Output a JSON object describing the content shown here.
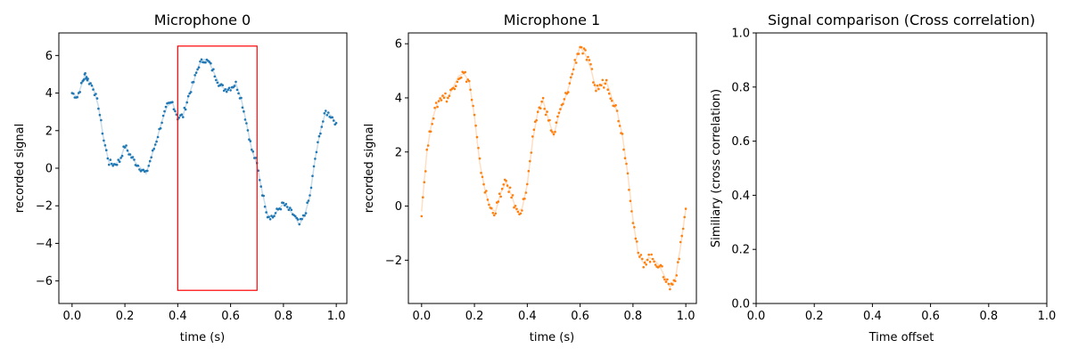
{
  "chart_data": [
    {
      "type": "scatter",
      "title": "Microphone 0",
      "xlabel": "time (s)",
      "ylabel": "recorded signal",
      "xlim": [
        -0.05,
        1.04
      ],
      "ylim": [
        -7.2,
        7.2
      ],
      "xticks": [
        0.0,
        0.2,
        0.4,
        0.6,
        0.8,
        1.0
      ],
      "xtick_labels": [
        "0.0",
        "0.2",
        "0.4",
        "0.6",
        "0.8",
        "1.0"
      ],
      "yticks": [
        -6,
        -4,
        -2,
        0,
        2,
        4,
        6
      ],
      "ytick_labels": [
        "−6",
        "−4",
        "−2",
        "0",
        "2",
        "4",
        "6"
      ],
      "grid": false,
      "color": "#1f77b4",
      "selection_box": {
        "x0": 0.4,
        "x1": 0.7,
        "y0": -6.5,
        "y1": 6.5,
        "color": "#ff0000"
      },
      "series": [
        {
          "x": [
            0.0,
            0.02,
            0.04,
            0.05,
            0.06,
            0.08,
            0.1,
            0.12,
            0.14,
            0.16,
            0.18,
            0.2,
            0.22,
            0.24,
            0.26,
            0.28,
            0.3,
            0.32,
            0.34,
            0.36,
            0.38,
            0.4,
            0.42,
            0.44,
            0.46,
            0.48,
            0.5,
            0.52,
            0.54,
            0.56,
            0.58,
            0.6,
            0.62,
            0.64,
            0.66,
            0.68,
            0.7,
            0.72,
            0.74,
            0.76,
            0.78,
            0.8,
            0.82,
            0.84,
            0.86,
            0.88,
            0.9,
            0.92,
            0.94,
            0.96,
            0.98,
            1.0
          ],
          "y": [
            4.0,
            3.8,
            4.6,
            5.0,
            4.7,
            4.3,
            3.3,
            1.5,
            0.3,
            0.2,
            0.4,
            1.2,
            0.7,
            0.3,
            0.0,
            -0.3,
            0.6,
            1.5,
            2.5,
            3.3,
            3.5,
            2.7,
            2.8,
            3.8,
            4.6,
            5.5,
            5.8,
            5.6,
            5.0,
            4.4,
            4.2,
            4.3,
            4.5,
            3.7,
            2.4,
            1.0,
            0.2,
            -1.3,
            -2.5,
            -2.6,
            -2.2,
            -1.9,
            -2.2,
            -2.5,
            -3.0,
            -2.5,
            -1.5,
            0.5,
            2.0,
            3.0,
            2.8,
            2.4
          ]
        }
      ]
    },
    {
      "type": "scatter",
      "title": "Microphone 1",
      "xlabel": "time (s)",
      "ylabel": "recorded signal",
      "xlim": [
        -0.05,
        1.04
      ],
      "ylim": [
        -3.6,
        6.4
      ],
      "xticks": [
        0.0,
        0.2,
        0.4,
        0.6,
        0.8,
        1.0
      ],
      "xtick_labels": [
        "0.0",
        "0.2",
        "0.4",
        "0.6",
        "0.8",
        "1.0"
      ],
      "yticks": [
        -2,
        0,
        2,
        4,
        6
      ],
      "ytick_labels": [
        "−2",
        "0",
        "2",
        "4",
        "6"
      ],
      "grid": false,
      "color": "#ff7f0e",
      "series": [
        {
          "x": [
            0.0,
            0.02,
            0.04,
            0.06,
            0.08,
            0.1,
            0.12,
            0.14,
            0.16,
            0.18,
            0.2,
            0.22,
            0.24,
            0.26,
            0.28,
            0.3,
            0.32,
            0.34,
            0.36,
            0.38,
            0.4,
            0.42,
            0.44,
            0.46,
            0.48,
            0.5,
            0.52,
            0.54,
            0.56,
            0.58,
            0.6,
            0.62,
            0.64,
            0.66,
            0.68,
            0.7,
            0.72,
            0.74,
            0.76,
            0.78,
            0.8,
            0.82,
            0.84,
            0.86,
            0.88,
            0.9,
            0.92,
            0.94,
            0.96,
            0.98,
            1.0
          ],
          "y": [
            -0.2,
            2.0,
            3.2,
            3.8,
            4.1,
            4.0,
            4.4,
            4.8,
            4.9,
            4.6,
            3.3,
            1.6,
            0.6,
            -0.1,
            -0.2,
            0.5,
            0.9,
            0.4,
            -0.2,
            -0.1,
            0.8,
            2.4,
            3.5,
            3.9,
            3.2,
            2.6,
            3.4,
            3.9,
            4.5,
            5.3,
            5.9,
            5.6,
            5.1,
            4.3,
            4.5,
            4.6,
            4.0,
            3.5,
            2.6,
            1.2,
            -0.5,
            -1.8,
            -2.1,
            -1.9,
            -2.0,
            -2.2,
            -2.6,
            -3.0,
            -2.7,
            -1.5,
            -0.1
          ]
        }
      ]
    },
    {
      "type": "line",
      "title": "Signal comparison (Cross correlation)",
      "xlabel": "Time offset",
      "ylabel": "Similiary (cross correlation)",
      "xlim": [
        0.0,
        1.0
      ],
      "ylim": [
        0.0,
        1.0
      ],
      "xticks": [
        0.0,
        0.2,
        0.4,
        0.6,
        0.8,
        1.0
      ],
      "xtick_labels": [
        "0.0",
        "0.2",
        "0.4",
        "0.6",
        "0.8",
        "1.0"
      ],
      "yticks": [
        0.0,
        0.2,
        0.4,
        0.6,
        0.8,
        1.0
      ],
      "ytick_labels": [
        "0.0",
        "0.2",
        "0.4",
        "0.6",
        "0.8",
        "1.0"
      ],
      "grid": false,
      "series": []
    }
  ]
}
